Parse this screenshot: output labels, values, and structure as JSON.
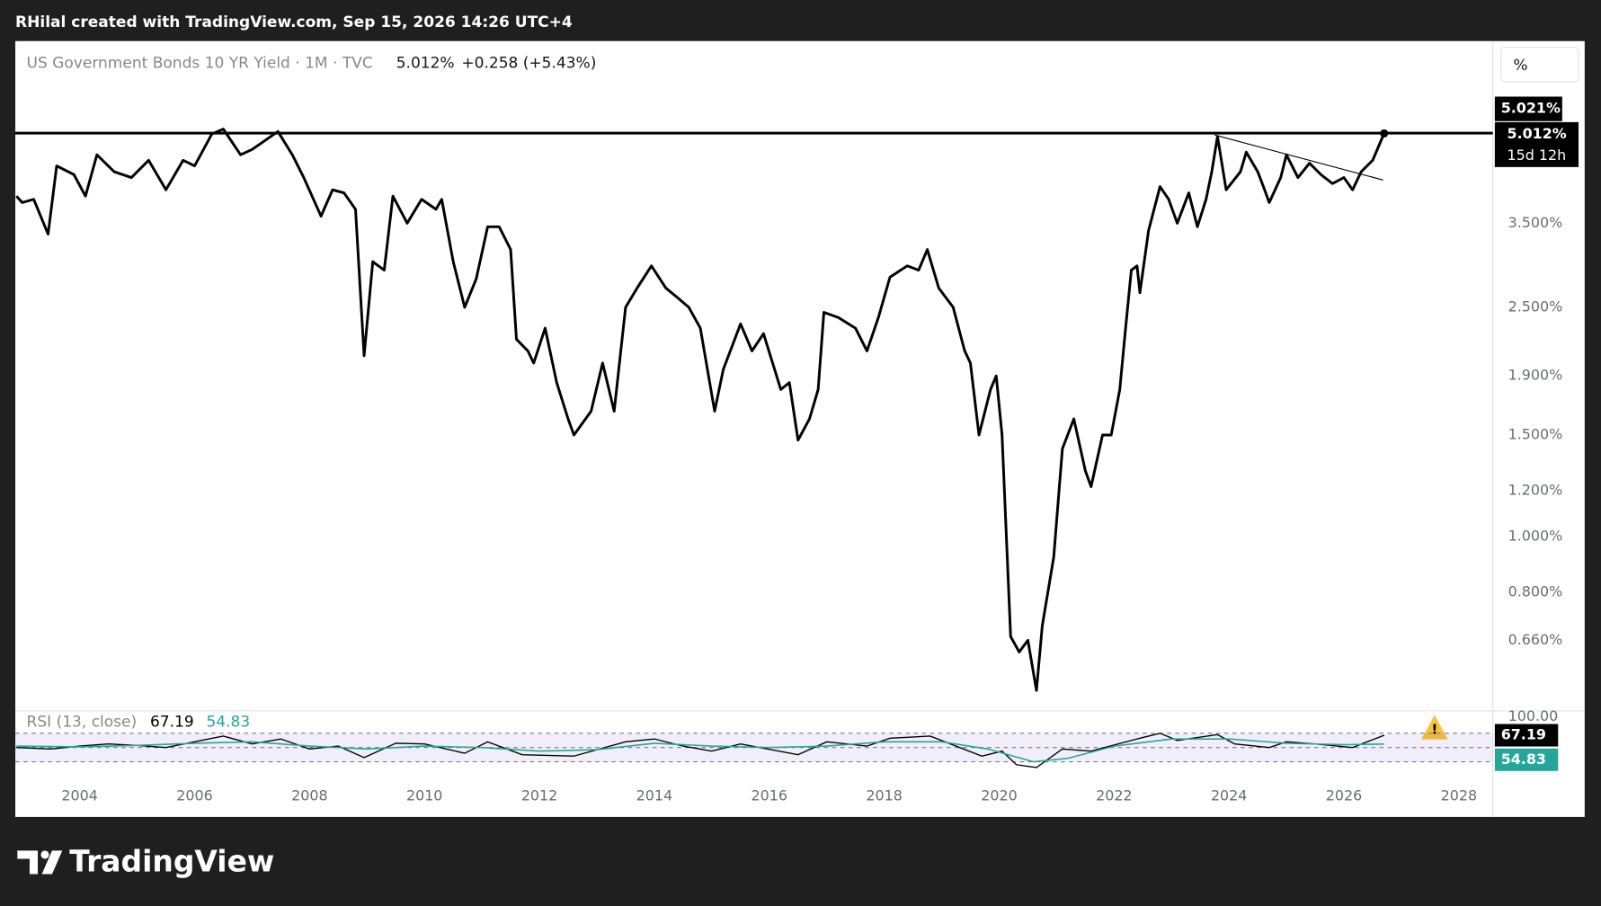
{
  "header": {
    "attribution": "RHilal created with TradingView.com, Sep 15, 2026 14:26 UTC+4"
  },
  "chart_data": [
    {
      "type": "line",
      "title": "US Government Bonds 10 YR Yield · 1M · TVC",
      "last_value_label": "5.012%",
      "change_label": "+0.258 (+5.43%)",
      "unit_button": "%",
      "countdown": "15d 12h",
      "log_scale": true,
      "grid": false,
      "color": "#000000",
      "x": [
        2002.9,
        2003.0,
        2003.2,
        2003.45,
        2003.6,
        2003.9,
        2004.1,
        2004.3,
        2004.6,
        2004.9,
        2005.2,
        2005.5,
        2005.8,
        2006.0,
        2006.3,
        2006.5,
        2006.8,
        2007.0,
        2007.45,
        2007.7,
        2007.9,
        2008.2,
        2008.4,
        2008.6,
        2008.8,
        2008.95,
        2009.1,
        2009.3,
        2009.45,
        2009.7,
        2009.95,
        2010.2,
        2010.3,
        2010.5,
        2010.7,
        2010.9,
        2011.1,
        2011.3,
        2011.5,
        2011.6,
        2011.8,
        2011.9,
        2012.1,
        2012.3,
        2012.5,
        2012.6,
        2012.9,
        2013.1,
        2013.3,
        2013.5,
        2013.7,
        2013.95,
        2014.2,
        2014.4,
        2014.6,
        2014.8,
        2015.05,
        2015.2,
        2015.5,
        2015.7,
        2015.9,
        2016.2,
        2016.35,
        2016.5,
        2016.7,
        2016.85,
        2016.95,
        2017.2,
        2017.5,
        2017.7,
        2017.9,
        2018.1,
        2018.4,
        2018.6,
        2018.75,
        2018.95,
        2019.2,
        2019.4,
        2019.5,
        2019.65,
        2019.85,
        2019.95,
        2020.05,
        2020.2,
        2020.35,
        2020.5,
        2020.65,
        2020.75,
        2020.95,
        2021.1,
        2021.3,
        2021.5,
        2021.6,
        2021.8,
        2021.95,
        2022.1,
        2022.2,
        2022.3,
        2022.4,
        2022.45,
        2022.6,
        2022.8,
        2022.95,
        2023.1,
        2023.3,
        2023.45,
        2023.6,
        2023.7,
        2023.8,
        2023.95,
        2024.2,
        2024.3,
        2024.5,
        2024.6,
        2024.7,
        2024.9,
        2025.0,
        2025.2,
        2025.4,
        2025.6,
        2025.8,
        2026.0,
        2026.15,
        2026.3,
        2026.5,
        2026.6,
        2026.7
      ],
      "values": [
        3.9,
        3.8,
        3.85,
        3.35,
        4.4,
        4.25,
        3.9,
        4.6,
        4.3,
        4.2,
        4.5,
        4.0,
        4.5,
        4.4,
        5.0,
        5.1,
        4.6,
        4.7,
        5.05,
        4.6,
        4.2,
        3.6,
        4.0,
        3.95,
        3.7,
        2.06,
        3.0,
        2.9,
        3.9,
        3.5,
        3.85,
        3.7,
        3.85,
        3.0,
        2.5,
        2.8,
        3.45,
        3.45,
        3.15,
        2.2,
        2.1,
        2.0,
        2.3,
        1.85,
        1.6,
        1.5,
        1.65,
        2.0,
        1.65,
        2.5,
        2.7,
        2.95,
        2.7,
        2.6,
        2.5,
        2.3,
        1.65,
        1.95,
        2.34,
        2.1,
        2.25,
        1.8,
        1.85,
        1.47,
        1.6,
        1.8,
        2.45,
        2.4,
        2.3,
        2.1,
        2.4,
        2.82,
        2.95,
        2.9,
        3.15,
        2.7,
        2.5,
        2.1,
        2.0,
        1.5,
        1.8,
        1.9,
        1.5,
        0.67,
        0.63,
        0.66,
        0.54,
        0.7,
        0.92,
        1.42,
        1.6,
        1.3,
        1.22,
        1.5,
        1.5,
        1.8,
        2.3,
        2.9,
        2.95,
        2.65,
        3.4,
        4.05,
        3.85,
        3.5,
        3.95,
        3.45,
        3.85,
        4.3,
        4.95,
        4.0,
        4.3,
        4.65,
        4.3,
        4.05,
        3.8,
        4.2,
        4.6,
        4.2,
        4.45,
        4.25,
        4.1,
        4.2,
        4.0,
        4.3,
        4.5,
        4.75,
        5.012
      ],
      "xlim": [
        2002.88,
        2028.59
      ],
      "xticks": [
        2004,
        2006,
        2008,
        2010,
        2012,
        2014,
        2016,
        2018,
        2020,
        2022,
        2024,
        2026,
        2028
      ],
      "ylim": [
        0.5,
        7.25
      ],
      "yticks": [
        {
          "value": 3.5,
          "label": "3.500%"
        },
        {
          "value": 2.5,
          "label": "2.500%"
        },
        {
          "value": 1.9,
          "label": "1.900%"
        },
        {
          "value": 1.5,
          "label": "1.500%"
        },
        {
          "value": 1.2,
          "label": "1.200%"
        },
        {
          "value": 1.0,
          "label": "1.000%"
        },
        {
          "value": 0.8,
          "label": "0.800%"
        },
        {
          "value": 0.66,
          "label": "0.660%"
        }
      ],
      "horizontal_lines": [
        {
          "value": 5.021,
          "label": "5.021%"
        },
        {
          "value": 5.012,
          "label": "5.012%"
        }
      ],
      "trendline": {
        "x": [
          2023.75,
          2026.68
        ],
        "values": [
          4.98,
          4.16
        ]
      }
    },
    {
      "type": "line",
      "title": "RSI (13, close)",
      "log_scale": false,
      "xlim": [
        2002.88,
        2028.59
      ],
      "ylim": [
        0,
        100
      ],
      "yticks": [
        {
          "value": 100,
          "label": "100.00"
        }
      ],
      "levels": [
        70,
        50,
        30
      ],
      "band_color": "#7e57c2",
      "series": [
        {
          "color": "#000000",
          "x": [
            2002.9,
            2003.5,
            2004,
            2004.5,
            2005,
            2005.5,
            2006,
            2006.5,
            2007,
            2007.5,
            2008,
            2008.5,
            2008.95,
            2009.5,
            2010,
            2010.7,
            2011.1,
            2011.7,
            2012.6,
            2013.5,
            2014,
            2014.5,
            2015,
            2015.5,
            2016.5,
            2017,
            2017.7,
            2018.1,
            2018.8,
            2019.7,
            2020.05,
            2020.3,
            2020.65,
            2021.1,
            2021.6,
            2022.4,
            2022.8,
            2023.1,
            2023.8,
            2024.1,
            2024.7,
            2025,
            2025.5,
            2026.15,
            2026.7
          ],
          "values": [
            50,
            48,
            52,
            55,
            53,
            50,
            58,
            66,
            55,
            62,
            48,
            52,
            36,
            56,
            55,
            42,
            58,
            40,
            38,
            58,
            62,
            52,
            45,
            55,
            40,
            58,
            52,
            63,
            66,
            38,
            45,
            26,
            22,
            48,
            45,
            62,
            70,
            60,
            68,
            55,
            50,
            58,
            55,
            50,
            67.19
          ]
        },
        {
          "color": "#26a69a",
          "x": [
            2002.9,
            2004,
            2005,
            2006,
            2007,
            2008,
            2009,
            2010,
            2011,
            2012,
            2013,
            2014,
            2015,
            2016,
            2017,
            2018,
            2019,
            2019.8,
            2020.6,
            2021.2,
            2022,
            2023,
            2024,
            2025,
            2026,
            2026.7
          ],
          "values": [
            52,
            51,
            53,
            56,
            58,
            52,
            48,
            52,
            50,
            45,
            47,
            56,
            52,
            50,
            52,
            58,
            58,
            48,
            30,
            35,
            52,
            62,
            62,
            56,
            54,
            54.83
          ]
        }
      ]
    }
  ],
  "footer": {
    "logo": "TradingView"
  }
}
